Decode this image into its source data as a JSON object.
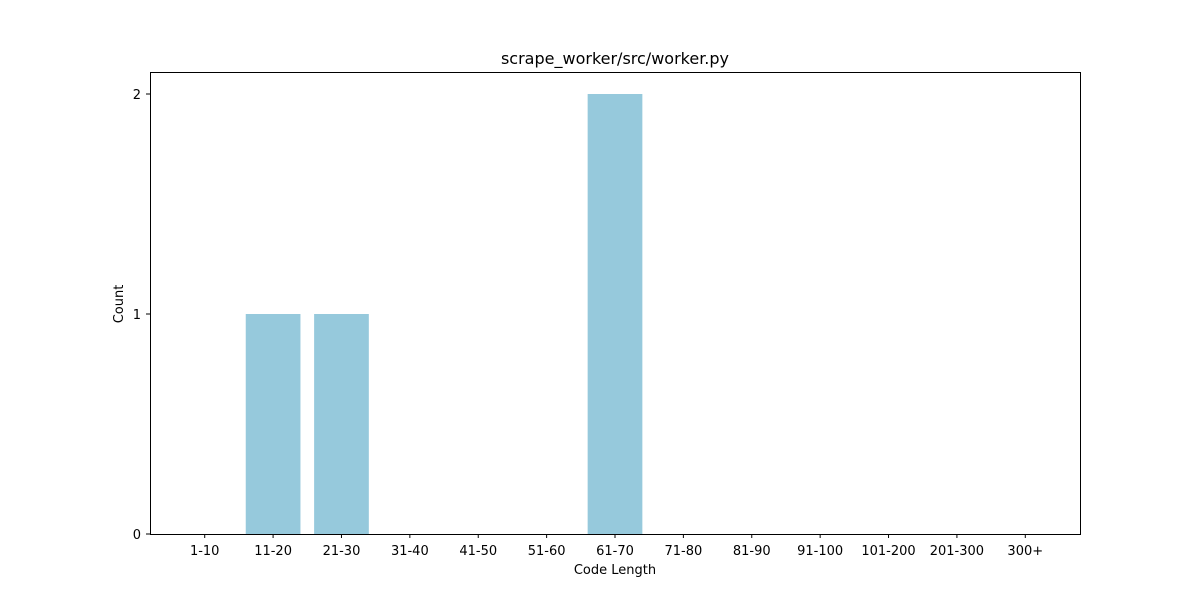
{
  "chart_data": {
    "type": "bar",
    "title": "scrape_worker/src/worker.py",
    "xlabel": "Code Length",
    "ylabel": "Count",
    "categories": [
      "1-10",
      "11-20",
      "21-30",
      "31-40",
      "41-50",
      "51-60",
      "61-70",
      "71-80",
      "81-90",
      "91-100",
      "101-200",
      "201-300",
      "300+"
    ],
    "values": [
      0,
      1,
      1,
      0,
      0,
      0,
      2,
      0,
      0,
      0,
      0,
      0,
      0
    ],
    "ylim": [
      0,
      2.1
    ],
    "yticks": [
      0,
      1,
      2
    ],
    "bar_color": "#96c9dc",
    "grid": false,
    "legend": "none"
  }
}
